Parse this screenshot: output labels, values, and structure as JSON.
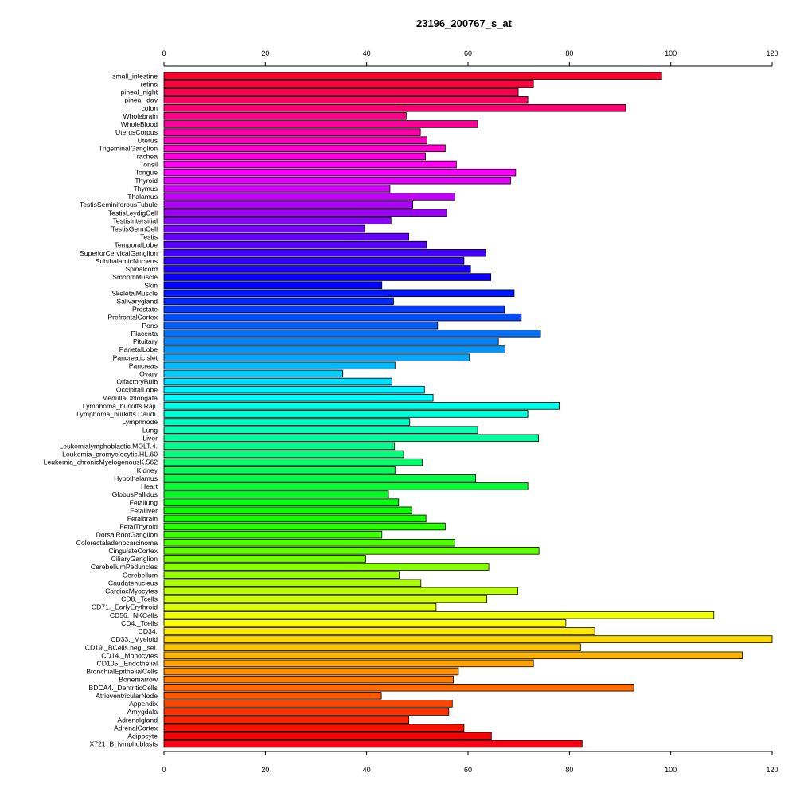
{
  "chart_data": {
    "type": "bar",
    "orientation": "horizontal",
    "title": "23196_200767_s_at",
    "xlabel": "",
    "ylabel": "",
    "xlim": [
      0,
      120
    ],
    "xticks": [
      0,
      20,
      40,
      60,
      80,
      100,
      120
    ],
    "axes": [
      "top",
      "bottom"
    ],
    "grid": false,
    "legend": "none",
    "bar_border_color": "#000000",
    "color_scheme": "rainbow",
    "categories": [
      "small_intestine",
      "retina",
      "pineal_night",
      "pineal_day",
      "colon",
      "Wholebrain",
      "WholeBlood",
      "UterusCorpus",
      "Uterus",
      "TrigeminalGanglion",
      "Trachea",
      "Tonsil",
      "Tongue",
      "Thyroid",
      "Thymus",
      "Thalamus",
      "TestisSeminiferousTubule",
      "TestisLeydigCell",
      "TestisIntersitial",
      "TestisGermCell",
      "Testis",
      "TemporalLobe",
      "SuperiorCervicalGanglion",
      "SubthalamicNucleus",
      "Spinalcord",
      "SmoothMuscle",
      "Skin",
      "SkeletalMuscle",
      "Salivarygland",
      "Prostate",
      "PrefrontalCortex",
      "Pons",
      "Placenta",
      "Pituitary",
      "ParietalLobe",
      "PancreaticIslet",
      "Pancreas",
      "Ovary",
      "OlfactoryBulb",
      "OccipitalLobe",
      "MedullaOblongata",
      "Lymphoma_burkitts.Raji.",
      "Lymphoma_burkitts.Daudi.",
      "Lymphnode",
      "Lung",
      "Liver",
      "Leukemialymphoblastic.MOLT.4.",
      "Leukemia_promyelocytic.HL.60",
      "Leukemia_chronicMyelogenousK.562",
      "Kidney",
      "Hypothalamus",
      "Heart",
      "GlobusPallidus",
      "Fetallung",
      "Fetalliver",
      "Fetalbrain",
      "FetalThyroid",
      "DorsalRootGanglion",
      "Colorectaladenocarcinoma",
      "CingulateCortex",
      "CiliaryGanglion",
      "CerebellumPeduncles",
      "Cerebellum",
      "Caudatenucleus",
      "CardiacMyocytes",
      "CD8._Tcells",
      "CD71._EarlyErythroid",
      "CD56._NKCells",
      "CD4._Tcells",
      "CD34.",
      "CD33._Myeloid",
      "CD19._BCells.neg._sel.",
      "CD14._Monocytes",
      "CD105._Endothelial",
      "BronchialEpithelialCells",
      "Bonemarrow",
      "BDCA4._DentriticCells",
      "AtrioventricularNode",
      "Appendix",
      "Amygdala",
      "Adrenalgland",
      "AdrenalCortex",
      "Adipocyte",
      "X721_B_lymphoblasts"
    ],
    "values": [
      98.2,
      72.9,
      69.9,
      71.8,
      91.1,
      47.8,
      61.9,
      50.6,
      51.9,
      55.5,
      51.6,
      57.7,
      69.4,
      68.4,
      44.6,
      57.4,
      49.1,
      55.8,
      44.8,
      39.6,
      48.3,
      51.8,
      63.5,
      59.2,
      60.5,
      64.5,
      43.0,
      69.1,
      45.3,
      67.2,
      70.5,
      54.0,
      74.3,
      66.0,
      67.3,
      60.3,
      45.6,
      35.3,
      45.0,
      51.4,
      53.1,
      78.0,
      71.8,
      48.5,
      61.9,
      73.9,
      45.5,
      47.3,
      51.0,
      45.6,
      61.5,
      71.8,
      44.3,
      46.3,
      48.9,
      51.7,
      55.5,
      43.0,
      57.4,
      74.0,
      39.8,
      64.1,
      46.4,
      50.7,
      69.8,
      63.7,
      53.7,
      108.5,
      79.3,
      85.0,
      122.0,
      82.2,
      114.1,
      72.9,
      58.1,
      57.1,
      92.7,
      42.9,
      56.9,
      56.2,
      48.3,
      59.2,
      64.6,
      82.5
    ]
  }
}
